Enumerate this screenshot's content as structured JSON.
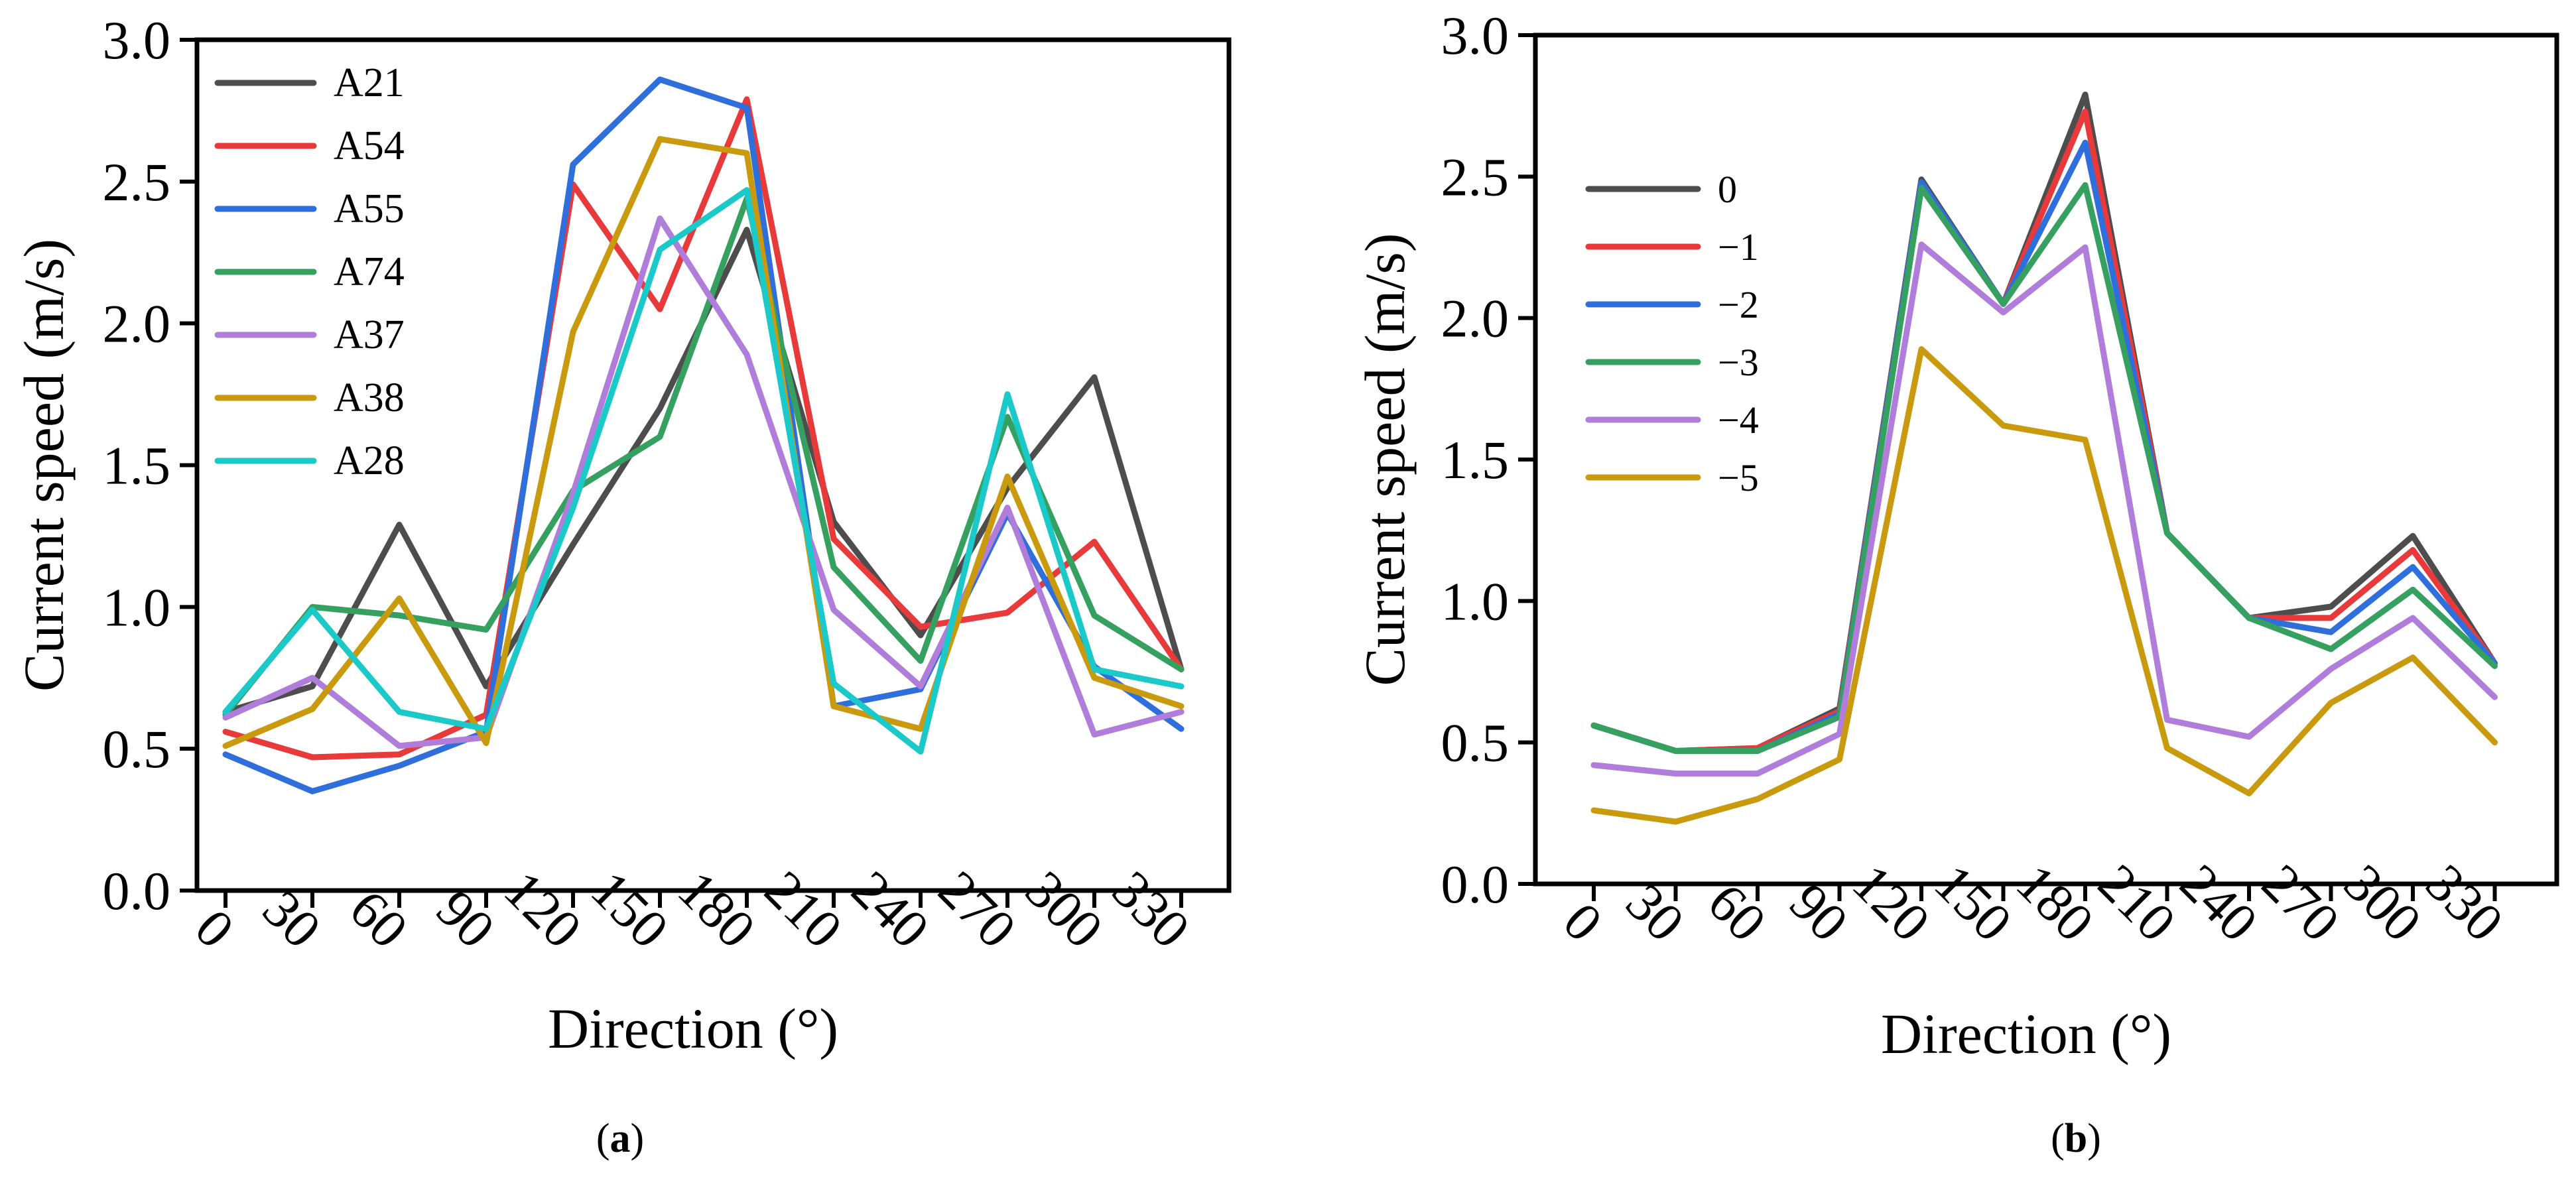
{
  "chart_data": [
    {
      "type": "line",
      "panel_label": "(a)",
      "panel_letter": "a",
      "xlabel": "Direction (°)",
      "ylabel": "Current speed (m/s)",
      "x": [
        0,
        30,
        60,
        90,
        120,
        150,
        180,
        210,
        240,
        270,
        300,
        330
      ],
      "x_tick_labels": [
        "0",
        "30",
        "60",
        "90",
        "120",
        "150",
        "180",
        "210",
        "240",
        "270",
        "300",
        "330"
      ],
      "y_ticks": [
        0.0,
        0.5,
        1.0,
        1.5,
        2.0,
        2.5,
        3.0
      ],
      "y_tick_labels": [
        "0.0",
        "0.5",
        "1.0",
        "1.5",
        "2.0",
        "2.5",
        "3.0"
      ],
      "ylim": [
        0,
        3
      ],
      "legend_position": "top-left",
      "series": [
        {
          "name": "A21",
          "color": "#4d4d4d",
          "values": [
            0.63,
            0.72,
            1.29,
            0.72,
            1.22,
            1.7,
            2.33,
            1.3,
            0.9,
            1.42,
            1.81,
            0.78
          ]
        },
        {
          "name": "A54",
          "color": "#e8393b",
          "values": [
            0.56,
            0.47,
            0.48,
            0.62,
            2.49,
            2.05,
            2.79,
            1.24,
            0.93,
            0.98,
            1.23,
            0.78
          ]
        },
        {
          "name": "A55",
          "color": "#2f6fdb",
          "values": [
            0.48,
            0.35,
            0.44,
            0.56,
            2.56,
            2.86,
            2.76,
            0.65,
            0.71,
            1.33,
            0.79,
            0.57
          ]
        },
        {
          "name": "A74",
          "color": "#36a060",
          "values": [
            0.62,
            1.0,
            0.97,
            0.92,
            1.41,
            1.6,
            2.44,
            1.14,
            0.81,
            1.67,
            0.97,
            0.78
          ]
        },
        {
          "name": "A37",
          "color": "#b07ddb",
          "values": [
            0.61,
            0.75,
            0.51,
            0.54,
            1.4,
            2.37,
            1.89,
            0.99,
            0.72,
            1.35,
            0.55,
            0.63
          ]
        },
        {
          "name": "A38",
          "color": "#c99a0e",
          "values": [
            0.51,
            0.64,
            1.03,
            0.52,
            1.97,
            2.65,
            2.6,
            0.65,
            0.57,
            1.46,
            0.75,
            0.65
          ]
        },
        {
          "name": "A28",
          "color": "#1cc9c9",
          "values": [
            0.63,
            0.99,
            0.63,
            0.57,
            1.35,
            2.26,
            2.47,
            0.73,
            0.49,
            1.75,
            0.78,
            0.72
          ]
        }
      ]
    },
    {
      "type": "line",
      "panel_label": "(b)",
      "panel_letter": "b",
      "xlabel": "Direction (°)",
      "ylabel": "Current speed (m/s)",
      "x": [
        0,
        30,
        60,
        90,
        120,
        150,
        180,
        210,
        240,
        270,
        300,
        330
      ],
      "x_tick_labels": [
        "0",
        "30",
        "60",
        "90",
        "120",
        "150",
        "180",
        "210",
        "240",
        "270",
        "300",
        "330"
      ],
      "y_ticks": [
        0.0,
        0.5,
        1.0,
        1.5,
        2.0,
        2.5,
        3.0
      ],
      "y_tick_labels": [
        "0.0",
        "0.5",
        "1.0",
        "1.5",
        "2.0",
        "2.5",
        "3.0"
      ],
      "ylim": [
        0,
        3
      ],
      "legend_position": "upper-left",
      "series": [
        {
          "name": "0",
          "color": "#4d4d4d",
          "values": [
            0.56,
            0.47,
            0.48,
            0.62,
            2.49,
            2.05,
            2.79,
            1.24,
            0.94,
            0.98,
            1.23,
            0.78
          ]
        },
        {
          "name": "−1",
          "color": "#e8393b",
          "values": [
            0.56,
            0.47,
            0.48,
            0.61,
            2.48,
            2.05,
            2.73,
            1.24,
            0.94,
            0.94,
            1.18,
            0.78
          ]
        },
        {
          "name": "−2",
          "color": "#2f6fdb",
          "values": [
            0.56,
            0.47,
            0.47,
            0.6,
            2.48,
            2.05,
            2.62,
            1.24,
            0.94,
            0.89,
            1.12,
            0.78
          ]
        },
        {
          "name": "−3",
          "color": "#36a060",
          "values": [
            0.56,
            0.47,
            0.47,
            0.59,
            2.46,
            2.05,
            2.47,
            1.24,
            0.94,
            0.83,
            1.04,
            0.77
          ]
        },
        {
          "name": "−4",
          "color": "#b07ddb",
          "values": [
            0.42,
            0.39,
            0.39,
            0.53,
            2.26,
            2.02,
            2.25,
            0.58,
            0.52,
            0.76,
            0.94,
            0.66
          ]
        },
        {
          "name": "−5",
          "color": "#c99a0e",
          "values": [
            0.26,
            0.22,
            0.3,
            0.44,
            1.89,
            1.62,
            1.57,
            0.48,
            0.32,
            0.64,
            0.8,
            0.5
          ]
        }
      ]
    }
  ]
}
